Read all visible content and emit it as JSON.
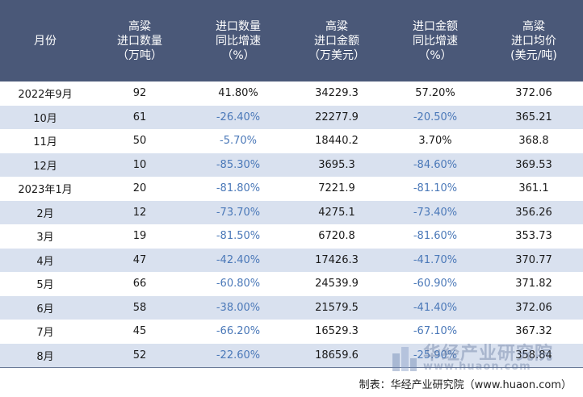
{
  "chart_data": {
    "type": "table",
    "columns": [
      [
        "月份"
      ],
      [
        "高粱",
        "进口数量",
        "（万吨）"
      ],
      [
        "进口数量",
        "同比增速",
        "（%）"
      ],
      [
        "高粱",
        "进口金额",
        "（万美元）"
      ],
      [
        "进口金额",
        "同比增速",
        "（%）"
      ],
      [
        "高粱",
        "进口均价",
        "(美元/吨)"
      ]
    ],
    "rows": [
      [
        "2022年9月",
        "92",
        "41.80%",
        "34229.3",
        "57.20%",
        "372.06"
      ],
      [
        "10月",
        "61",
        "-26.40%",
        "22277.9",
        "-20.50%",
        "365.21"
      ],
      [
        "11月",
        "50",
        "-5.70%",
        "18440.2",
        "3.70%",
        "368.8"
      ],
      [
        "12月",
        "10",
        "-85.30%",
        "3695.3",
        "-84.60%",
        "369.53"
      ],
      [
        "2023年1月",
        "20",
        "-81.80%",
        "7221.9",
        "-81.10%",
        "361.1"
      ],
      [
        "2月",
        "12",
        "-73.70%",
        "4275.1",
        "-73.40%",
        "356.26"
      ],
      [
        "3月",
        "19",
        "-81.50%",
        "6720.8",
        "-81.60%",
        "353.73"
      ],
      [
        "4月",
        "47",
        "-42.40%",
        "17426.3",
        "-41.70%",
        "370.77"
      ],
      [
        "5月",
        "66",
        "-60.80%",
        "24539.9",
        "-60.90%",
        "371.82"
      ],
      [
        "6月",
        "58",
        "-38.00%",
        "21579.5",
        "-41.40%",
        "372.06"
      ],
      [
        "7月",
        "45",
        "-66.20%",
        "16529.3",
        "-67.10%",
        "367.32"
      ],
      [
        "8月",
        "52",
        "-22.60%",
        "18659.6",
        "-25.90%",
        "358.84"
      ]
    ]
  },
  "footer": "制表：华经产业研究院（www.huaon.com）",
  "watermark": {
    "name": "华经产业研究院",
    "url": "www.huaon.com",
    "icon": "huajing-logo-icon"
  },
  "colors": {
    "header_bg": "#4a5878",
    "header_text": "#ffffff",
    "row_alt_bg": "#d9e1ef",
    "negative_text": "#4a78b8"
  }
}
